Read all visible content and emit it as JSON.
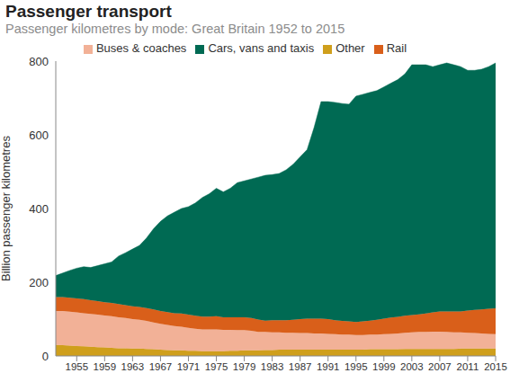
{
  "chart_data": {
    "type": "area",
    "title": "Passenger transport",
    "subtitle": "Passenger kilometres by mode: Great Britain 1952 to 2015",
    "y_label": "Billion passenger kilometres",
    "stacked": true,
    "grid": false,
    "legend": "top",
    "x": [
      1952,
      1953,
      1954,
      1955,
      1956,
      1957,
      1958,
      1959,
      1960,
      1961,
      1962,
      1963,
      1964,
      1965,
      1966,
      1967,
      1968,
      1969,
      1970,
      1971,
      1972,
      1973,
      1974,
      1975,
      1976,
      1977,
      1978,
      1979,
      1980,
      1981,
      1982,
      1983,
      1984,
      1985,
      1986,
      1987,
      1988,
      1989,
      1990,
      1991,
      1992,
      1993,
      1994,
      1995,
      1996,
      1997,
      1998,
      1999,
      2000,
      2001,
      2002,
      2003,
      2004,
      2005,
      2006,
      2007,
      2008,
      2009,
      2010,
      2011,
      2012,
      2013,
      2014,
      2015
    ],
    "xlim": [
      1952,
      2015
    ],
    "xticks": [
      1955,
      1959,
      1963,
      1967,
      1971,
      1975,
      1979,
      1983,
      1987,
      1991,
      1995,
      1999,
      2003,
      2007,
      2011,
      2015
    ],
    "ylim": [
      0,
      800
    ],
    "yticks": [
      0,
      200,
      400,
      600,
      800
    ],
    "series": [
      {
        "name": "Other",
        "color": "#cf9f1c",
        "values": [
          30,
          29,
          28,
          27,
          26,
          25,
          24,
          23,
          22,
          21,
          21,
          20,
          20,
          19,
          18,
          17,
          16,
          15,
          15,
          14,
          14,
          13,
          13,
          13,
          13,
          14,
          14,
          15,
          15,
          15,
          16,
          16,
          17,
          17,
          17,
          17,
          17,
          17,
          17,
          17,
          17,
          17,
          17,
          17,
          17,
          18,
          18,
          18,
          18,
          18,
          19,
          19,
          19,
          19,
          19,
          19,
          19,
          19,
          20,
          20,
          20,
          20,
          20,
          20
        ]
      },
      {
        "name": "Buses & coaches",
        "color": "#f2b197",
        "values": [
          92,
          93,
          92,
          91,
          90,
          89,
          88,
          87,
          86,
          84,
          82,
          80,
          78,
          76,
          73,
          70,
          68,
          66,
          64,
          62,
          60,
          59,
          59,
          59,
          58,
          57,
          56,
          55,
          53,
          50,
          49,
          48,
          47,
          46,
          46,
          45,
          45,
          44,
          44,
          43,
          42,
          41,
          41,
          40,
          40,
          40,
          40,
          41,
          42,
          43,
          44,
          45,
          46,
          46,
          47,
          47,
          46,
          45,
          44,
          43,
          42,
          41,
          40,
          39
        ]
      },
      {
        "name": "Rail",
        "color": "#d95f1a",
        "values": [
          38,
          38,
          38,
          38,
          38,
          37,
          37,
          36,
          36,
          36,
          35,
          35,
          35,
          35,
          35,
          35,
          35,
          35,
          36,
          36,
          35,
          35,
          35,
          36,
          34,
          34,
          35,
          35,
          35,
          34,
          31,
          33,
          33,
          34,
          35,
          38,
          39,
          40,
          40,
          40,
          38,
          37,
          36,
          35,
          37,
          38,
          40,
          42,
          44,
          45,
          46,
          47,
          48,
          50,
          52,
          55,
          56,
          57,
          57,
          60,
          63,
          65,
          68,
          70
        ]
      },
      {
        "name": "Cars, vans and taxis",
        "color": "#006a53",
        "values": [
          58,
          65,
          74,
          82,
          88,
          89,
          96,
          104,
          111,
          130,
          142,
          155,
          167,
          190,
          219,
          243,
          261,
          274,
          285,
          293,
          306,
          323,
          333,
          347,
          340,
          350,
          365,
          370,
          377,
          386,
          394,
          395,
          398,
          408,
          422,
          440,
          459,
          519,
          589,
          590,
          591,
          590,
          589,
          613,
          616,
          619,
          622,
          629,
          636,
          644,
          656,
          679,
          677,
          675,
          667,
          669,
          674,
          669,
          664,
          652,
          650,
          652,
          657,
          666
        ]
      }
    ]
  }
}
